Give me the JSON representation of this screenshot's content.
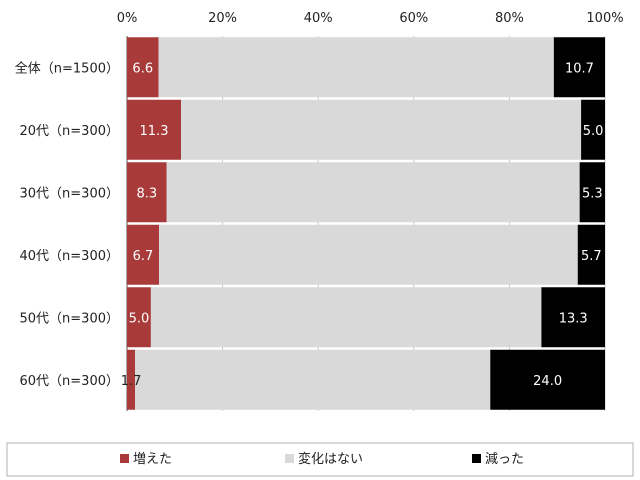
{
  "chart_data": {
    "type": "bar",
    "orientation": "horizontal",
    "stacked": "percent",
    "categories": [
      "全体（n=1500）",
      "20代（n=300）",
      "30代（n=300）",
      "40代（n=300）",
      "50代（n=300）",
      "60代（n=300）"
    ],
    "series": [
      {
        "name": "増えた",
        "values": [
          6.6,
          11.3,
          8.3,
          6.7,
          5.0,
          1.7
        ],
        "color": "#a83a3a",
        "label_color": "#ffffff"
      },
      {
        "name": "変化はない",
        "values": [
          82.7,
          83.7,
          86.4,
          87.6,
          81.7,
          74.3
        ],
        "color": "#d9d9d9",
        "label_color": "#222222",
        "show_labels": false
      },
      {
        "name": "減った",
        "values": [
          10.7,
          5.0,
          5.3,
          5.7,
          13.3,
          24.0
        ],
        "color": "#000000",
        "label_color": "#ffffff"
      }
    ],
    "x_ticks": [
      "0%",
      "20%",
      "40%",
      "60%",
      "80%",
      "100%"
    ],
    "xlim": [
      0,
      100
    ],
    "grid": true,
    "legend_position": "bottom"
  },
  "colors": {
    "grid": "#c8c8c8",
    "axis": "#555555",
    "legend_border": "#b0b0b0"
  }
}
